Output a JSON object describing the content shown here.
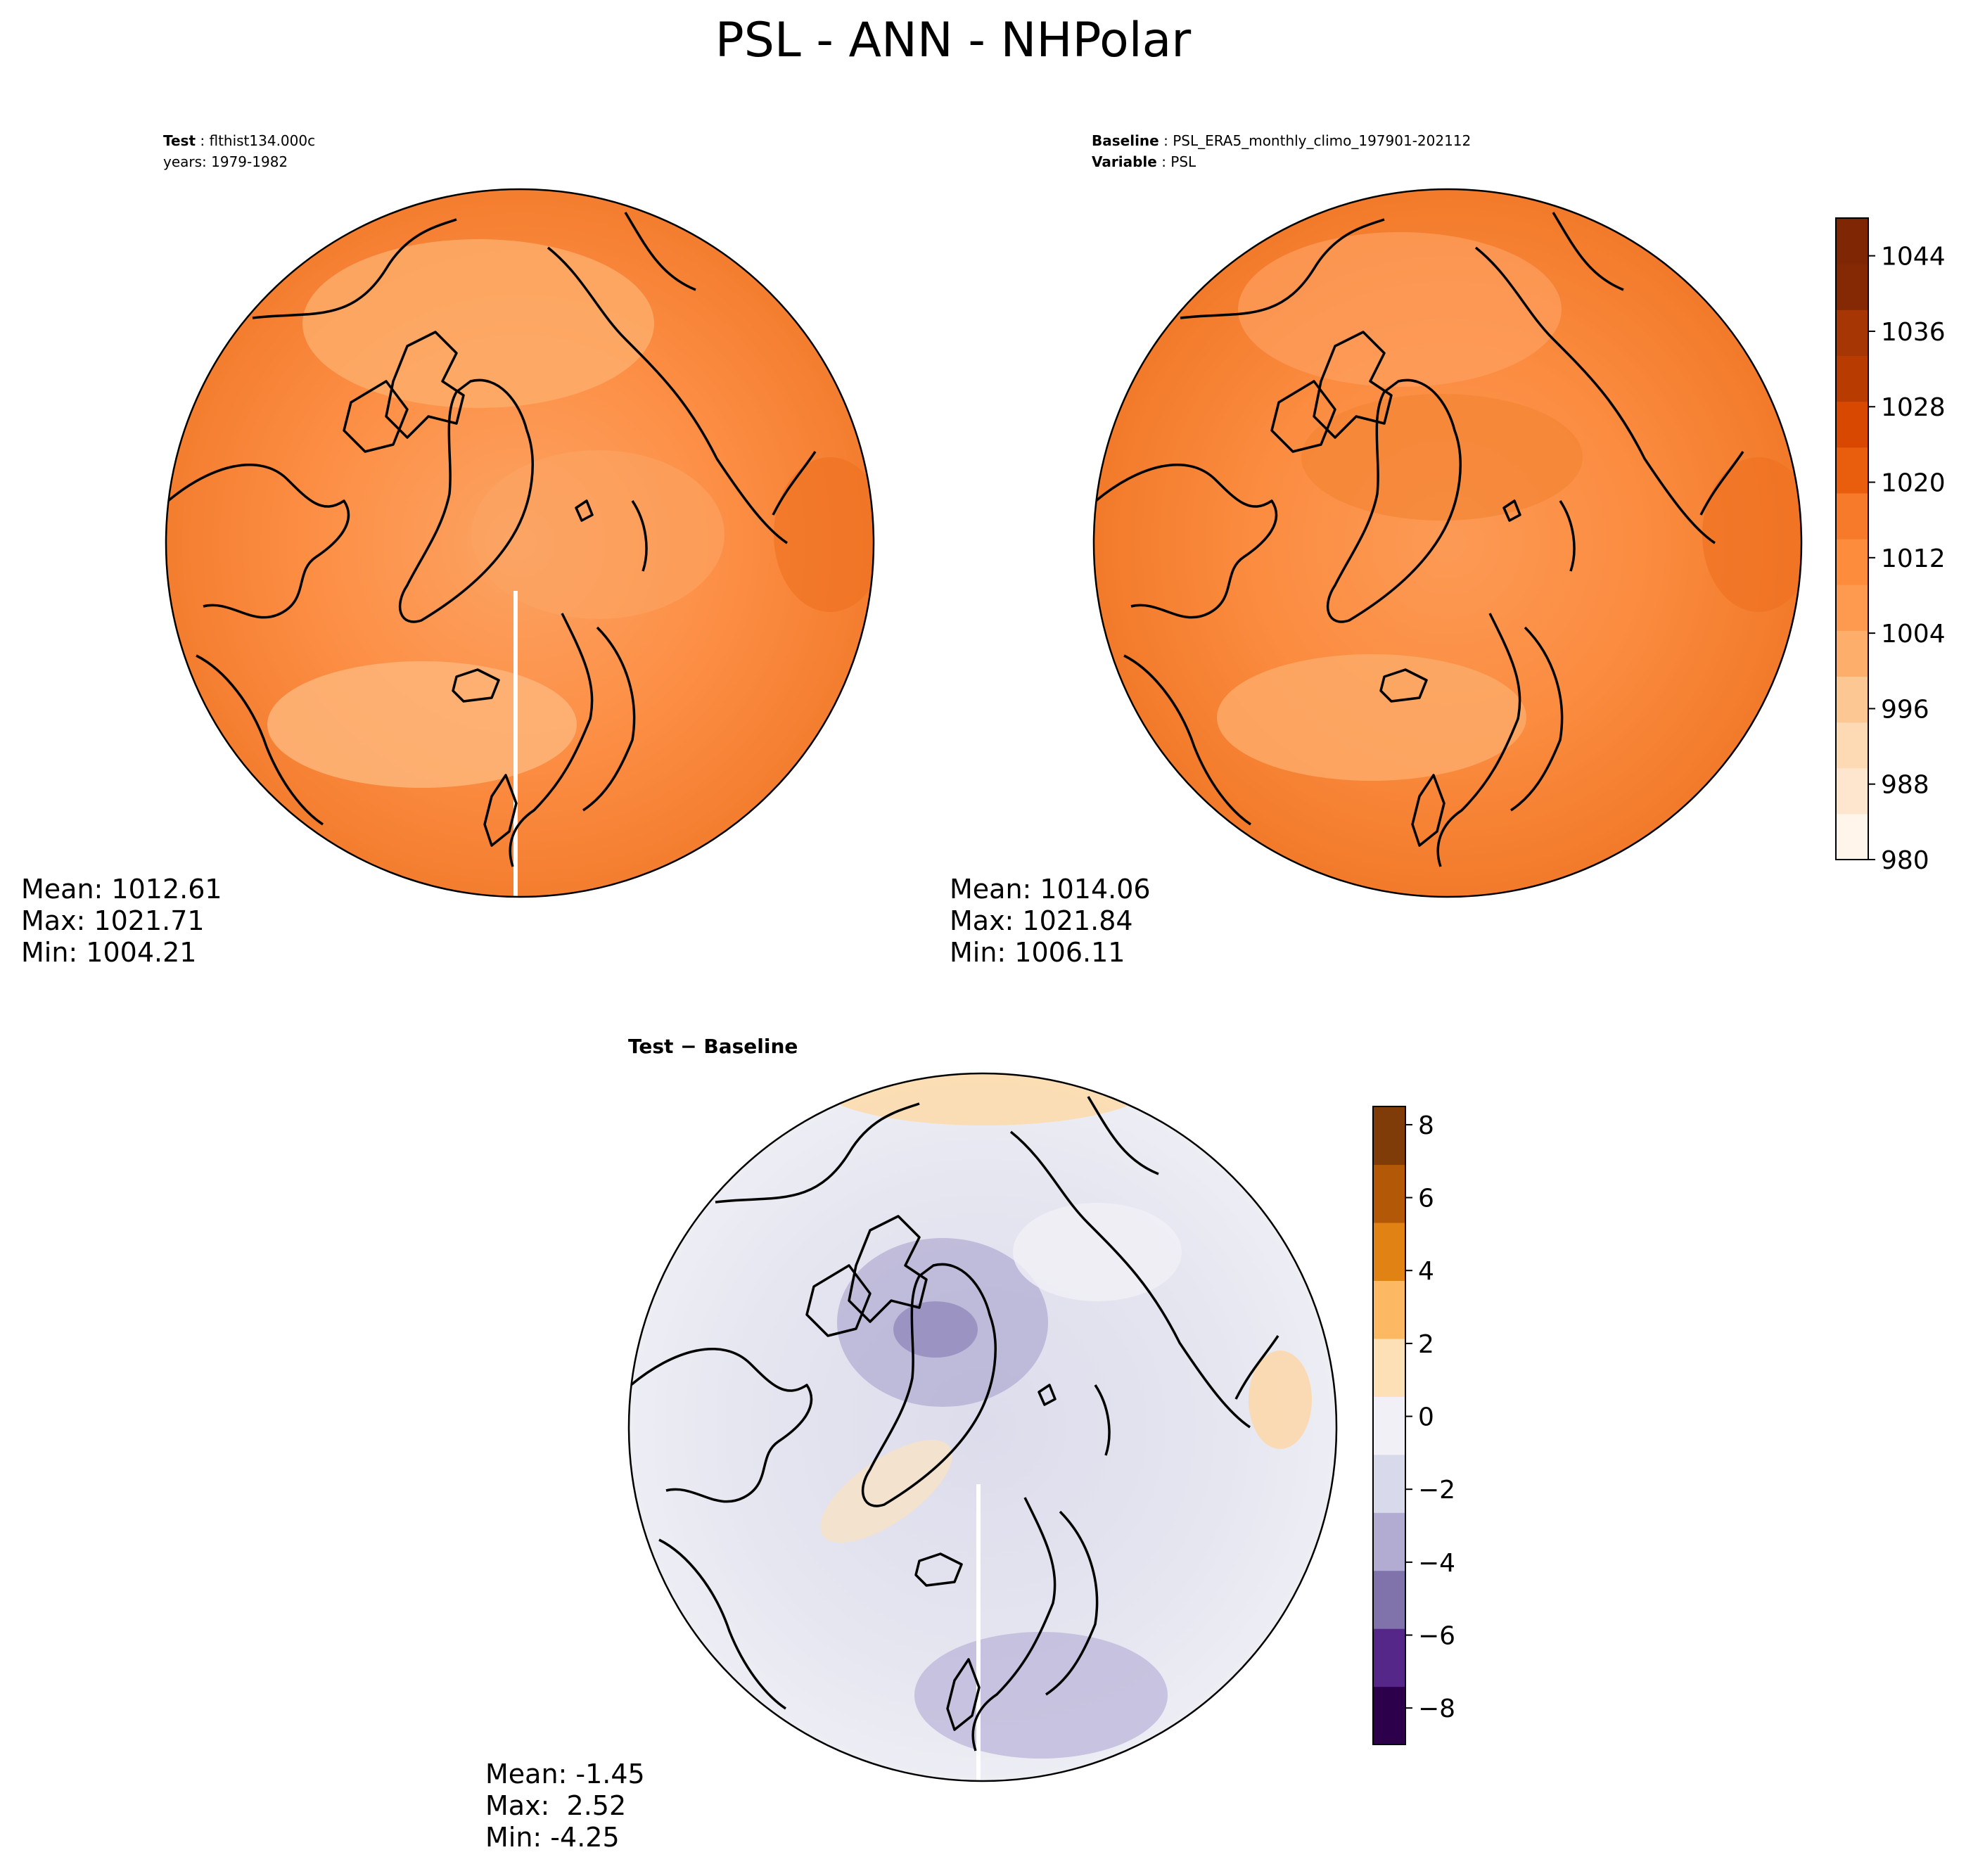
{
  "title": "PSL - ANN - NHPolar",
  "panels": [
    {
      "id": "test",
      "header": [
        {
          "label": "Test",
          "value": "flthist134.000c"
        },
        {
          "label": "",
          "value": "years: 1979-1982"
        }
      ],
      "stats": {
        "mean": "Mean: 1012.61",
        "max": "Max: 1021.71",
        "min": "Min: 1004.21"
      }
    },
    {
      "id": "baseline",
      "header": [
        {
          "label": "Baseline",
          "value": "PSL_ERA5_monthly_climo_197901-202112"
        },
        {
          "label": "Variable",
          "value": "PSL"
        }
      ],
      "stats": {
        "mean": "Mean: 1014.06",
        "max": "Max: 1021.84",
        "min": "Min: 1006.11"
      }
    },
    {
      "id": "diff",
      "header": [
        {
          "label": "Test − Baseline",
          "value": ""
        }
      ],
      "stats": {
        "mean": "Mean: -1.45",
        "max": "Max:  2.52",
        "min": "Min: -4.25"
      }
    }
  ],
  "chart_data": [
    {
      "type": "heatmap",
      "name": "Test",
      "projection": "north polar stereographic",
      "variable": "PSL",
      "title": "Test: flthist134.000c, years: 1979-1982",
      "mean": 1012.61,
      "max": 1021.71,
      "min": 1004.21,
      "colormap": "Oranges",
      "clim": [
        980,
        1048
      ]
    },
    {
      "type": "heatmap",
      "name": "Baseline",
      "projection": "north polar stereographic",
      "variable": "PSL",
      "title": "Baseline: PSL_ERA5_monthly_climo_197901-202112",
      "mean": 1014.06,
      "max": 1021.84,
      "min": 1006.11,
      "colormap": "Oranges",
      "clim": [
        980,
        1048
      ]
    },
    {
      "type": "heatmap",
      "name": "Test - Baseline",
      "projection": "north polar stereographic",
      "variable": "PSL difference",
      "mean": -1.45,
      "max": 2.52,
      "min": -4.25,
      "colormap": "PuOr_r",
      "clim": [
        -9,
        8.5
      ]
    }
  ],
  "colorbars": {
    "abs": {
      "ticks": [
        980,
        988,
        996,
        1004,
        1012,
        1020,
        1028,
        1036,
        1044
      ],
      "tick_labels": [
        "980",
        "988",
        "996",
        "1004",
        "1012",
        "1020",
        "1028",
        "1036",
        "1044"
      ],
      "range": [
        980,
        1048
      ],
      "colors": [
        "#fff5eb",
        "#fee6ce",
        "#fdd9b4",
        "#fdc794",
        "#fdae6b",
        "#fd9a50",
        "#fd8d3c",
        "#f67a29",
        "#e95e0d",
        "#d94801",
        "#b83c02",
        "#a63603",
        "#852904",
        "#7f2704"
      ]
    },
    "diff": {
      "ticks": [
        -8,
        -6,
        -4,
        -2,
        0,
        2,
        4,
        6,
        8
      ],
      "tick_labels": [
        "−8",
        "−6",
        "−4",
        "−2",
        "0",
        "2",
        "4",
        "6",
        "8"
      ],
      "range": [
        -9,
        8.5
      ],
      "colors": [
        "#2d004b",
        "#542788",
        "#8073ac",
        "#b2abd2",
        "#d8daeb",
        "#f2f0f7",
        "#fee0b6",
        "#fdb863",
        "#e08214",
        "#b35806",
        "#7f3b08"
      ]
    }
  }
}
